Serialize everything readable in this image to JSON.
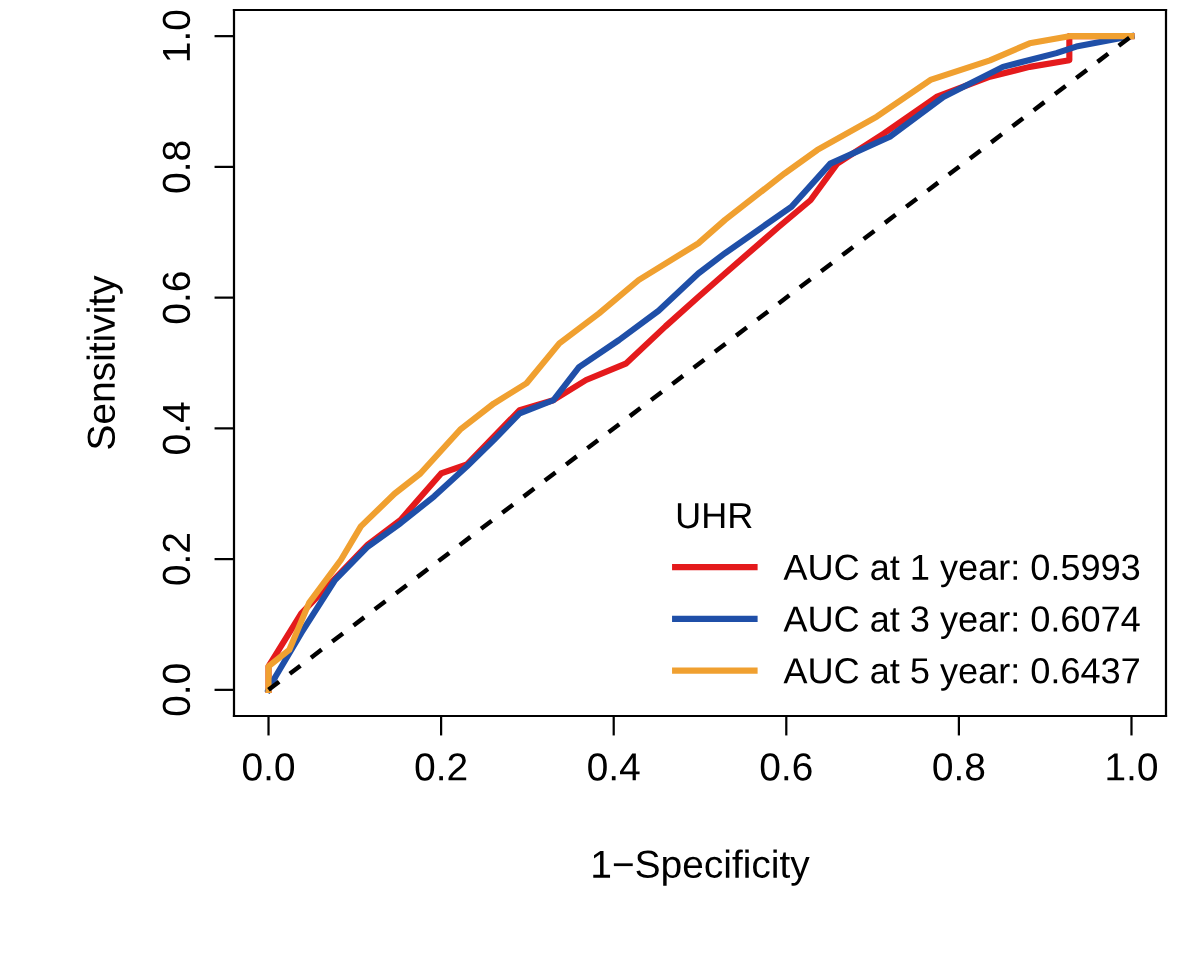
{
  "chart_data": {
    "type": "line",
    "xlabel": "1−Specificity",
    "ylabel": "Sensitivity",
    "legend_title": "UHR",
    "legend": "bottom right",
    "grid": false,
    "marker": "none",
    "xlim": [
      -0.04,
      1.04
    ],
    "ylim": [
      -0.04,
      1.04
    ],
    "xticks": [
      {
        "value": 0,
        "label": "0.0"
      },
      0.2,
      0.4,
      0.6,
      0.8,
      {
        "value": 1,
        "label": "1.0"
      }
    ],
    "yticks": [
      {
        "value": 0,
        "label": "0.0"
      },
      0.2,
      0.4,
      0.6,
      0.8,
      {
        "value": 1,
        "label": "1.0"
      }
    ],
    "series": [
      {
        "name": "AUC at 1 year: 0.5993",
        "color": "#e41a1c",
        "x": [
          0,
          0,
          0.038,
          0.077,
          0.115,
          0.153,
          0.2,
          0.23,
          0.291,
          0.33,
          0.368,
          0.414,
          0.46,
          0.498,
          0.529,
          0.591,
          0.628,
          0.659,
          0.713,
          0.774,
          0.836,
          0.882,
          0.928,
          0.928,
          1.0
        ],
        "values": [
          0,
          0.036,
          0.117,
          0.17,
          0.222,
          0.26,
          0.331,
          0.345,
          0.428,
          0.443,
          0.474,
          0.499,
          0.556,
          0.601,
          0.637,
          0.708,
          0.749,
          0.805,
          0.851,
          0.907,
          0.938,
          0.953,
          0.963,
          1.0,
          1.0
        ]
      },
      {
        "name": "AUC at 3 year: 0.6074",
        "color": "#1f4fa8",
        "x": [
          0,
          0.008,
          0.038,
          0.077,
          0.115,
          0.153,
          0.192,
          0.23,
          0.261,
          0.291,
          0.33,
          0.36,
          0.406,
          0.452,
          0.498,
          0.529,
          0.606,
          0.651,
          0.72,
          0.782,
          0.851,
          0.913,
          0.936,
          1.0
        ],
        "values": [
          0,
          0.02,
          0.087,
          0.168,
          0.219,
          0.255,
          0.296,
          0.342,
          0.382,
          0.423,
          0.443,
          0.494,
          0.535,
          0.58,
          0.637,
          0.668,
          0.739,
          0.805,
          0.846,
          0.907,
          0.953,
          0.974,
          0.984,
          1.0
        ]
      },
      {
        "name": "AUC at 5 year: 0.6437",
        "color": "#f0a030",
        "x": [
          0,
          0,
          0.024,
          0.047,
          0.084,
          0.107,
          0.146,
          0.176,
          0.222,
          0.261,
          0.299,
          0.337,
          0.383,
          0.429,
          0.498,
          0.529,
          0.598,
          0.636,
          0.705,
          0.767,
          0.836,
          0.882,
          0.928,
          1.0
        ],
        "values": [
          0,
          0.036,
          0.061,
          0.133,
          0.199,
          0.25,
          0.3,
          0.331,
          0.398,
          0.438,
          0.469,
          0.53,
          0.576,
          0.627,
          0.683,
          0.719,
          0.79,
          0.826,
          0.877,
          0.933,
          0.963,
          0.989,
          1.0,
          1.0
        ]
      },
      {
        "color": "#000000",
        "line_style": "dashed",
        "x": [
          0,
          1
        ],
        "values": [
          0,
          1
        ]
      }
    ]
  }
}
